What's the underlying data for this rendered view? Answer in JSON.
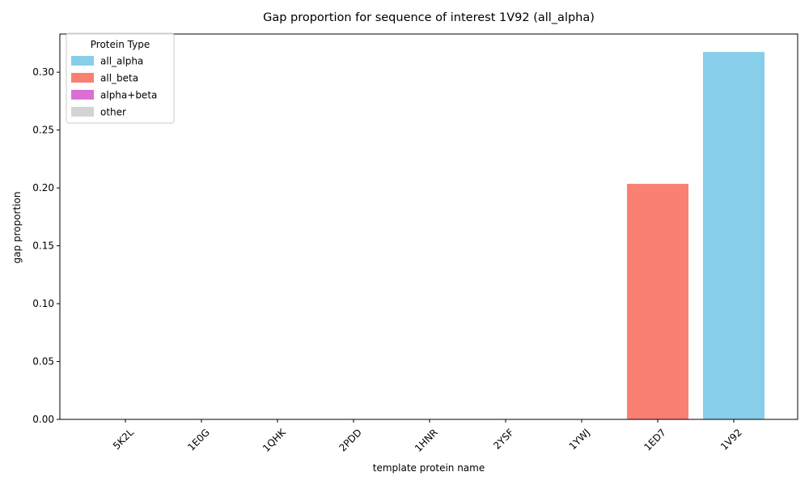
{
  "chart_data": {
    "type": "bar",
    "title": "Gap proportion for sequence of interest 1V92 (all_alpha)",
    "xlabel": "template protein name",
    "ylabel": "gap proportion",
    "categories": [
      "5K2L",
      "1E0G",
      "1QHK",
      "2PDD",
      "1HNR",
      "2YSF",
      "1YWJ",
      "1ED7",
      "1V92"
    ],
    "values": [
      0,
      0,
      0,
      0,
      0,
      0,
      0,
      0.2035,
      0.3175
    ],
    "bar_types": [
      "all_alpha",
      "all_alpha",
      "all_alpha",
      "all_alpha",
      "all_alpha",
      "all_alpha",
      "all_alpha",
      "all_beta",
      "all_alpha"
    ],
    "ylim": [
      0,
      0.333
    ],
    "yticks": [
      0.0,
      0.05,
      0.1,
      0.15,
      0.2,
      0.25,
      0.3
    ],
    "ytick_labels": [
      "0.00",
      "0.05",
      "0.10",
      "0.15",
      "0.20",
      "0.25",
      "0.30"
    ],
    "grid": false,
    "legend": {
      "title": "Protein Type",
      "placement": "top-left",
      "entries": [
        {
          "name": "all_alpha",
          "color": "#87CEEB"
        },
        {
          "name": "all_beta",
          "color": "#FA8072"
        },
        {
          "name": "alpha+beta",
          "color": "#DA70D6"
        },
        {
          "name": "other",
          "color": "#D3D3D3"
        }
      ]
    }
  }
}
